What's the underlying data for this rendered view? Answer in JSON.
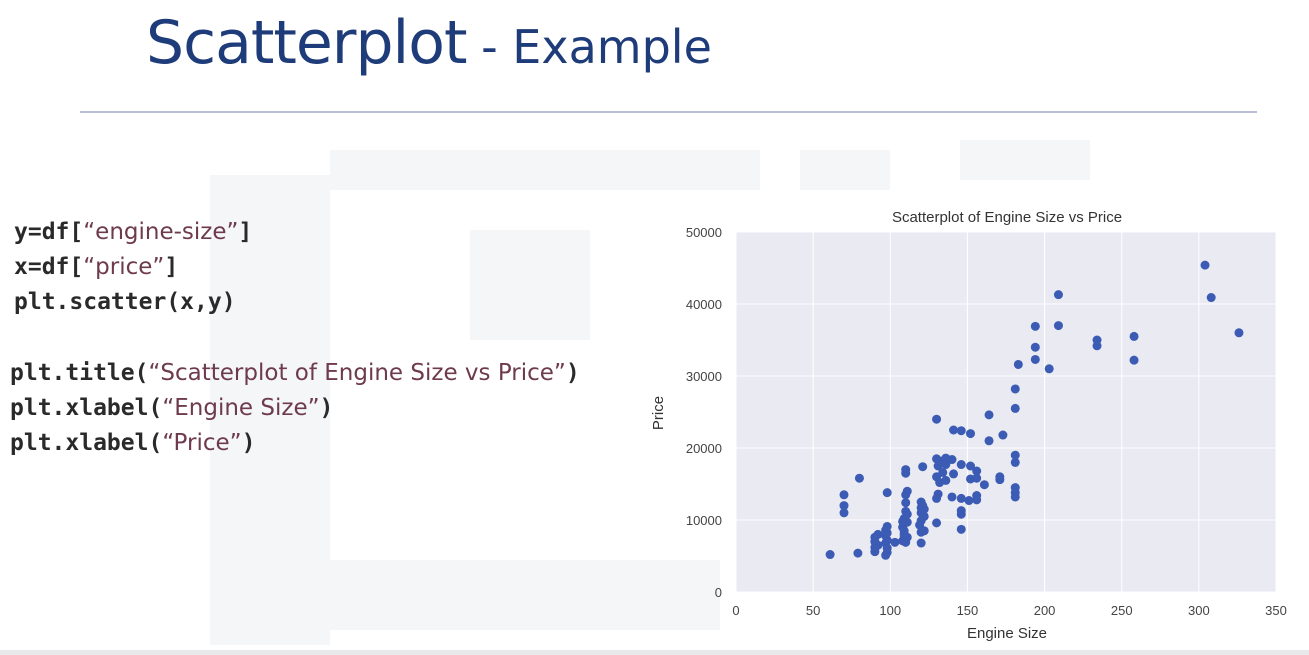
{
  "slide": {
    "title_main": "Scatterplot",
    "title_sub": " - Example"
  },
  "code": {
    "block1": [
      {
        "code": "y=df[",
        "str": "“engine-size”",
        "end": "]"
      },
      {
        "code": "x=df[",
        "str": "“price”",
        "end": "]"
      },
      {
        "code": "plt.scatter(x,y)",
        "str": "",
        "end": ""
      }
    ],
    "block2": [
      {
        "code": "plt.title(",
        "str": "“Scatterplot of Engine Size vs Price”",
        "end": ")"
      },
      {
        "code": "plt.xlabel(",
        "str": "“Engine Size”",
        "end": ")"
      },
      {
        "code": "plt.xlabel(",
        "str": "“Price”",
        "end": ")"
      }
    ]
  },
  "colors": {
    "title": "#1f3c7a",
    "plot_background": "#eaeaf2",
    "grid": "#ffffff",
    "marker": "#3b5bb4"
  },
  "chart_data": {
    "type": "scatter",
    "title": "Scatterplot of Engine Size vs Price",
    "xlabel": "Engine Size",
    "ylabel": "Price",
    "xlim": [
      0,
      350
    ],
    "ylim": [
      0,
      50000
    ],
    "xticks": [
      0,
      50,
      100,
      150,
      200,
      250,
      300,
      350
    ],
    "yticks": [
      0,
      10000,
      20000,
      30000,
      40000,
      50000
    ],
    "grid": true,
    "points": [
      [
        61,
        5200
      ],
      [
        70,
        11000
      ],
      [
        70,
        12000
      ],
      [
        70,
        13500
      ],
      [
        79,
        5400
      ],
      [
        80,
        15800
      ],
      [
        90,
        5600
      ],
      [
        90,
        6200
      ],
      [
        90,
        7000
      ],
      [
        90,
        7600
      ],
      [
        92,
        6500
      ],
      [
        92,
        8000
      ],
      [
        97,
        5100
      ],
      [
        97,
        6800
      ],
      [
        97,
        7800
      ],
      [
        97,
        8600
      ],
      [
        98,
        5500
      ],
      [
        98,
        6100
      ],
      [
        98,
        7200
      ],
      [
        98,
        8200
      ],
      [
        98,
        9100
      ],
      [
        98,
        13800
      ],
      [
        103,
        6900
      ],
      [
        108,
        7100
      ],
      [
        108,
        9000
      ],
      [
        108,
        9800
      ],
      [
        109,
        7200
      ],
      [
        109,
        7800
      ],
      [
        109,
        8100
      ],
      [
        109,
        8500
      ],
      [
        109,
        9500
      ],
      [
        109,
        10200
      ],
      [
        110,
        6900
      ],
      [
        110,
        11200
      ],
      [
        110,
        12400
      ],
      [
        110,
        13500
      ],
      [
        110,
        16500
      ],
      [
        110,
        17000
      ],
      [
        111,
        7600
      ],
      [
        111,
        9700
      ],
      [
        111,
        10800
      ],
      [
        111,
        14000
      ],
      [
        119,
        9300
      ],
      [
        120,
        6800
      ],
      [
        120,
        8300
      ],
      [
        120,
        9900
      ],
      [
        120,
        11000
      ],
      [
        120,
        11700
      ],
      [
        120,
        12500
      ],
      [
        121,
        12000
      ],
      [
        121,
        17400
      ],
      [
        122,
        8500
      ],
      [
        122,
        10500
      ],
      [
        122,
        11500
      ],
      [
        130,
        9600
      ],
      [
        130,
        13000
      ],
      [
        130,
        16000
      ],
      [
        130,
        18500
      ],
      [
        130,
        24000
      ],
      [
        131,
        13600
      ],
      [
        131,
        17500
      ],
      [
        132,
        15200
      ],
      [
        132,
        18200
      ],
      [
        134,
        16600
      ],
      [
        136,
        15500
      ],
      [
        136,
        17700
      ],
      [
        136,
        18600
      ],
      [
        140,
        13200
      ],
      [
        140,
        18400
      ],
      [
        141,
        16400
      ],
      [
        141,
        22500
      ],
      [
        146,
        8700
      ],
      [
        146,
        10800
      ],
      [
        146,
        11300
      ],
      [
        146,
        13000
      ],
      [
        146,
        17700
      ],
      [
        146,
        22400
      ],
      [
        151,
        12700
      ],
      [
        152,
        15700
      ],
      [
        152,
        17500
      ],
      [
        152,
        22000
      ],
      [
        156,
        12800
      ],
      [
        156,
        13400
      ],
      [
        156,
        15800
      ],
      [
        156,
        16800
      ],
      [
        161,
        14900
      ],
      [
        164,
        21000
      ],
      [
        164,
        24600
      ],
      [
        171,
        15600
      ],
      [
        171,
        16000
      ],
      [
        173,
        21800
      ],
      [
        181,
        13200
      ],
      [
        181,
        13800
      ],
      [
        181,
        14500
      ],
      [
        181,
        18000
      ],
      [
        181,
        19000
      ],
      [
        181,
        25500
      ],
      [
        181,
        28200
      ],
      [
        183,
        31600
      ],
      [
        194,
        32300
      ],
      [
        194,
        34000
      ],
      [
        194,
        36900
      ],
      [
        203,
        31000
      ],
      [
        209,
        37000
      ],
      [
        209,
        41300
      ],
      [
        234,
        34200
      ],
      [
        234,
        35000
      ],
      [
        258,
        32200
      ],
      [
        258,
        35500
      ],
      [
        304,
        45400
      ],
      [
        308,
        40900
      ],
      [
        326,
        36000
      ]
    ]
  }
}
